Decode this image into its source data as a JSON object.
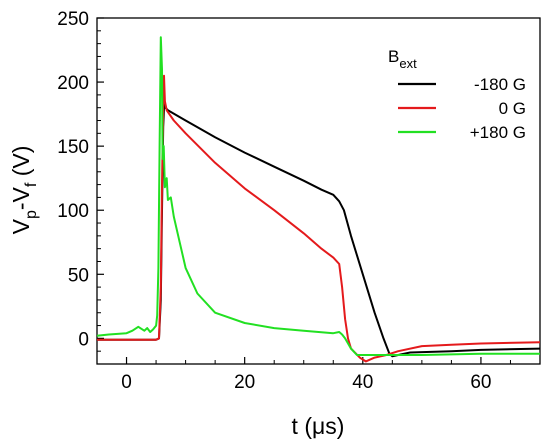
{
  "chart_data": {
    "type": "line",
    "xlabel": {
      "main": "t (",
      "unit_symbol": "μs",
      "close": ")"
    },
    "ylabel": {
      "p1": "V",
      "s1": "p",
      "mid": "-V",
      "s2": "f",
      "unit": " (V)"
    },
    "xlim": [
      -5,
      70
    ],
    "ylim": [
      -20,
      250
    ],
    "xticks": [
      0,
      20,
      40,
      60
    ],
    "yticks": [
      0,
      50,
      100,
      150,
      200,
      250
    ],
    "x_minor_step": 5,
    "y_minor_step": 10,
    "grid": false,
    "legend": {
      "placement": "top-right",
      "title_main": "B",
      "title_sub": "ext"
    },
    "series": [
      {
        "name": "-180 G",
        "color": "#000000",
        "points": [
          [
            -5,
            -1
          ],
          [
            0,
            -1
          ],
          [
            5,
            -1
          ],
          [
            5.5,
            0
          ],
          [
            5.8,
            30
          ],
          [
            6.0,
            100
          ],
          [
            6.2,
            165
          ],
          [
            6.4,
            185
          ],
          [
            6.6,
            180
          ],
          [
            7,
            178
          ],
          [
            10,
            170
          ],
          [
            15,
            157
          ],
          [
            20,
            145
          ],
          [
            25,
            134
          ],
          [
            30,
            123
          ],
          [
            33,
            116
          ],
          [
            35,
            112
          ],
          [
            36,
            107
          ],
          [
            36.8,
            100
          ],
          [
            38,
            80
          ],
          [
            40,
            50
          ],
          [
            42,
            20
          ],
          [
            43.5,
            0
          ],
          [
            44.5,
            -12
          ],
          [
            45,
            -14
          ],
          [
            46,
            -13
          ],
          [
            48,
            -11
          ],
          [
            55,
            -10
          ],
          [
            60,
            -9
          ],
          [
            70,
            -8
          ]
        ]
      },
      {
        "name": "0 G",
        "color": "#e41a1c",
        "points": [
          [
            -5,
            -1
          ],
          [
            0,
            -1
          ],
          [
            5,
            -1
          ],
          [
            5.5,
            0
          ],
          [
            5.8,
            40
          ],
          [
            6.0,
            120
          ],
          [
            6.2,
            180
          ],
          [
            6.35,
            205
          ],
          [
            6.5,
            185
          ],
          [
            6.8,
            178
          ],
          [
            8,
            170
          ],
          [
            10,
            160
          ],
          [
            15,
            137
          ],
          [
            20,
            117
          ],
          [
            25,
            100
          ],
          [
            30,
            82
          ],
          [
            33,
            70
          ],
          [
            35,
            63
          ],
          [
            36,
            58
          ],
          [
            36.5,
            40
          ],
          [
            37,
            15
          ],
          [
            37.5,
            0
          ],
          [
            38,
            -8
          ],
          [
            39.5,
            -15
          ],
          [
            40.5,
            -18
          ],
          [
            42,
            -15
          ],
          [
            44,
            -13
          ],
          [
            46,
            -10
          ],
          [
            50,
            -6
          ],
          [
            55,
            -5
          ],
          [
            60,
            -4
          ],
          [
            70,
            -3
          ]
        ]
      },
      {
        "name": "+180 G",
        "color": "#22e022",
        "points": [
          [
            -5,
            2
          ],
          [
            -3,
            3
          ],
          [
            0,
            4
          ],
          [
            1,
            6
          ],
          [
            2,
            9
          ],
          [
            3,
            6
          ],
          [
            3.5,
            8
          ],
          [
            4,
            5
          ],
          [
            4.5,
            7
          ],
          [
            5,
            10
          ],
          [
            5.2,
            18
          ],
          [
            5.4,
            55
          ],
          [
            5.6,
            150
          ],
          [
            5.8,
            235
          ],
          [
            6.0,
            210
          ],
          [
            6.1,
            140
          ],
          [
            6.3,
            150
          ],
          [
            6.5,
            118
          ],
          [
            6.8,
            125
          ],
          [
            7,
            108
          ],
          [
            7.5,
            110
          ],
          [
            8,
            95
          ],
          [
            9,
            75
          ],
          [
            10,
            55
          ],
          [
            12,
            35
          ],
          [
            15,
            20
          ],
          [
            20,
            12
          ],
          [
            25,
            8
          ],
          [
            30,
            6
          ],
          [
            35,
            4
          ],
          [
            36,
            5
          ],
          [
            36.5,
            3
          ],
          [
            37,
            0
          ],
          [
            38,
            -8
          ],
          [
            39,
            -13
          ],
          [
            42,
            -13
          ],
          [
            45,
            -13
          ],
          [
            50,
            -13
          ],
          [
            60,
            -12
          ],
          [
            70,
            -12
          ]
        ]
      }
    ]
  }
}
